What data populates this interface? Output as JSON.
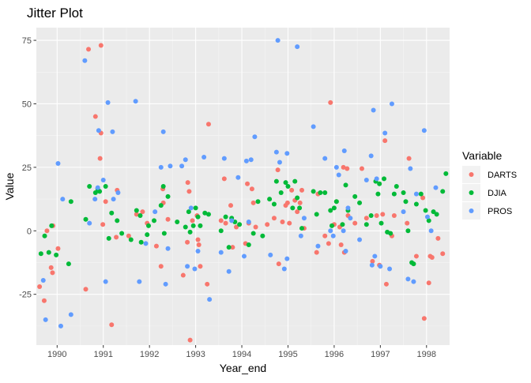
{
  "chart_data": {
    "type": "scatter",
    "title": "Jitter Plot",
    "xlabel": "Year_end",
    "ylabel": "Value",
    "xlim": [
      1989.55,
      1998.5
    ],
    "ylim": [
      -45,
      80
    ],
    "x_ticks": [
      1990,
      1991,
      1992,
      1993,
      1994,
      1995,
      1996,
      1997,
      1998
    ],
    "y_ticks": [
      -25,
      0,
      25,
      50,
      75
    ],
    "grid": true,
    "legend": {
      "title": "Variable",
      "position": "right"
    },
    "series": [
      {
        "name": "DARTS",
        "color": "#F8766D",
        "points": [
          [
            1989.62,
            -22
          ],
          [
            1989.72,
            -27.5
          ],
          [
            1989.78,
            0
          ],
          [
            1989.87,
            -14.5
          ],
          [
            1989.9,
            -16.5
          ],
          [
            1989.91,
            2
          ],
          [
            1990.02,
            -7
          ],
          [
            1990.62,
            -23
          ],
          [
            1990.68,
            71.5
          ],
          [
            1990.83,
            45
          ],
          [
            1990.93,
            28.5
          ],
          [
            1990.95,
            73
          ],
          [
            1990.95,
            38.5
          ],
          [
            1990.99,
            2.5
          ],
          [
            1991.05,
            11.5
          ],
          [
            1991.18,
            -37
          ],
          [
            1991.28,
            -2.5
          ],
          [
            1991.3,
            16
          ],
          [
            1991.55,
            -2
          ],
          [
            1991.72,
            6.5
          ],
          [
            1991.85,
            7.5
          ],
          [
            1991.95,
            3
          ],
          [
            1992.15,
            -6
          ],
          [
            1992.25,
            -14
          ],
          [
            1992.29,
            16.5
          ],
          [
            1992.3,
            11
          ],
          [
            1992.4,
            4.5
          ],
          [
            1992.73,
            -17.5
          ],
          [
            1992.82,
            -4.5
          ],
          [
            1992.83,
            19
          ],
          [
            1992.86,
            15.5
          ],
          [
            1992.88,
            -43
          ],
          [
            1992.93,
            4
          ],
          [
            1993.03,
            6
          ],
          [
            1993.05,
            -3.5
          ],
          [
            1993.07,
            -5.5
          ],
          [
            1993.1,
            -14
          ],
          [
            1993.25,
            -21
          ],
          [
            1993.28,
            42
          ],
          [
            1993.55,
            4
          ],
          [
            1993.62,
            20.5
          ],
          [
            1993.65,
            3
          ],
          [
            1993.76,
            10
          ],
          [
            1993.8,
            -6.5
          ],
          [
            1993.88,
            1.5
          ],
          [
            1994.08,
            -5
          ],
          [
            1994.12,
            18.5
          ],
          [
            1994.15,
            3
          ],
          [
            1994.22,
            16.5
          ],
          [
            1994.25,
            11
          ],
          [
            1994.3,
            1.5
          ],
          [
            1994.55,
            2.5
          ],
          [
            1994.7,
            5
          ],
          [
            1994.78,
            24
          ],
          [
            1994.8,
            -13
          ],
          [
            1994.88,
            3.5
          ],
          [
            1994.95,
            10
          ],
          [
            1994.99,
            11
          ],
          [
            1995.03,
            3
          ],
          [
            1995.08,
            16
          ],
          [
            1995.15,
            12
          ],
          [
            1995.2,
            7.5
          ],
          [
            1995.26,
            11
          ],
          [
            1995.3,
            16
          ],
          [
            1995.35,
            1
          ],
          [
            1995.62,
            -8.5
          ],
          [
            1995.65,
            14.5
          ],
          [
            1995.8,
            -2
          ],
          [
            1995.88,
            -5
          ],
          [
            1995.92,
            50.5
          ],
          [
            1996.0,
            2.5
          ],
          [
            1996.05,
            11.5
          ],
          [
            1996.12,
            1.5
          ],
          [
            1996.15,
            -5.5
          ],
          [
            1996.2,
            25
          ],
          [
            1996.22,
            -8.5
          ],
          [
            1996.28,
            24.5
          ],
          [
            1996.3,
            6
          ],
          [
            1996.45,
            3
          ],
          [
            1996.6,
            24.5
          ],
          [
            1996.7,
            5
          ],
          [
            1996.83,
            -12
          ],
          [
            1996.92,
            6
          ],
          [
            1996.98,
            -13.5
          ],
          [
            1997.05,
            6.5
          ],
          [
            1997.1,
            35.5
          ],
          [
            1997.13,
            -21
          ],
          [
            1997.25,
            -2
          ],
          [
            1997.3,
            6
          ],
          [
            1997.58,
            3
          ],
          [
            1997.62,
            28.5
          ],
          [
            1997.78,
            -10
          ],
          [
            1997.92,
            13
          ],
          [
            1997.95,
            -34.5
          ],
          [
            1998.05,
            -20.5
          ],
          [
            1998.08,
            -10
          ],
          [
            1998.12,
            -10.5
          ],
          [
            1998.25,
            -3
          ],
          [
            1998.35,
            -9
          ]
        ]
      },
      {
        "name": "DJIA",
        "color": "#00BA38",
        "points": [
          [
            1989.65,
            -9
          ],
          [
            1989.73,
            -2
          ],
          [
            1989.82,
            -8.5
          ],
          [
            1989.88,
            2
          ],
          [
            1989.98,
            -9.5
          ],
          [
            1990.25,
            -13
          ],
          [
            1990.3,
            11.5
          ],
          [
            1990.62,
            4.5
          ],
          [
            1990.7,
            17.5
          ],
          [
            1990.83,
            15
          ],
          [
            1990.88,
            16.5
          ],
          [
            1990.92,
            15.5
          ],
          [
            1991.05,
            17.5
          ],
          [
            1991.12,
            -3
          ],
          [
            1991.18,
            7
          ],
          [
            1991.3,
            4
          ],
          [
            1991.4,
            -1
          ],
          [
            1991.6,
            -3.5
          ],
          [
            1991.72,
            8
          ],
          [
            1991.8,
            6
          ],
          [
            1991.82,
            -4.5
          ],
          [
            1991.95,
            -1.5
          ],
          [
            1991.98,
            2
          ],
          [
            1992.1,
            4
          ],
          [
            1992.25,
            10
          ],
          [
            1992.3,
            17.5
          ],
          [
            1992.32,
            -1
          ],
          [
            1992.4,
            13.5
          ],
          [
            1992.6,
            3.5
          ],
          [
            1992.78,
            1.5
          ],
          [
            1992.85,
            7.5
          ],
          [
            1992.88,
            -0.5
          ],
          [
            1992.95,
            2
          ],
          [
            1993.0,
            9
          ],
          [
            1993.05,
            5.5
          ],
          [
            1993.1,
            2
          ],
          [
            1993.2,
            7
          ],
          [
            1993.28,
            6.5
          ],
          [
            1993.55,
            0
          ],
          [
            1993.65,
            5.5
          ],
          [
            1993.72,
            -6.5
          ],
          [
            1993.78,
            5
          ],
          [
            1993.85,
            3.5
          ],
          [
            1993.95,
            2.5
          ],
          [
            1994.15,
            -5.5
          ],
          [
            1994.25,
            -1
          ],
          [
            1994.35,
            11.5
          ],
          [
            1994.45,
            -2
          ],
          [
            1994.6,
            12.5
          ],
          [
            1994.7,
            10.5
          ],
          [
            1994.75,
            19.5
          ],
          [
            1994.85,
            15
          ],
          [
            1994.95,
            19
          ],
          [
            1995.0,
            17.5
          ],
          [
            1995.1,
            9
          ],
          [
            1995.15,
            19.5
          ],
          [
            1995.2,
            13
          ],
          [
            1995.25,
            9
          ],
          [
            1995.3,
            1
          ],
          [
            1995.55,
            15.5
          ],
          [
            1995.62,
            6.5
          ],
          [
            1995.7,
            15
          ],
          [
            1995.8,
            15
          ],
          [
            1995.92,
            8
          ],
          [
            1995.95,
            2
          ],
          [
            1996.0,
            9
          ],
          [
            1996.05,
            11.5
          ],
          [
            1996.18,
            2.5
          ],
          [
            1996.25,
            18
          ],
          [
            1996.3,
            8
          ],
          [
            1996.45,
            13.5
          ],
          [
            1996.55,
            11
          ],
          [
            1996.7,
            2.5
          ],
          [
            1996.8,
            6
          ],
          [
            1996.9,
            19.5
          ],
          [
            1996.95,
            14.5
          ],
          [
            1996.98,
            18.5
          ],
          [
            1997.02,
            3
          ],
          [
            1997.08,
            20.5
          ],
          [
            1997.15,
            -0.5
          ],
          [
            1997.22,
            -1
          ],
          [
            1997.3,
            14.5
          ],
          [
            1997.35,
            17.5
          ],
          [
            1997.5,
            15
          ],
          [
            1997.55,
            11.5
          ],
          [
            1997.6,
            0
          ],
          [
            1997.68,
            -12.5
          ],
          [
            1997.72,
            -13
          ],
          [
            1997.78,
            10.5
          ],
          [
            1997.88,
            14.5
          ],
          [
            1997.98,
            8
          ],
          [
            1998.05,
            4
          ],
          [
            1998.15,
            7.5
          ],
          [
            1998.22,
            6.5
          ],
          [
            1998.35,
            15.5
          ],
          [
            1998.42,
            22.5
          ]
        ]
      },
      {
        "name": "PROS",
        "color": "#619CFF",
        "points": [
          [
            1989.7,
            -19.5
          ],
          [
            1989.75,
            -35
          ],
          [
            1990.02,
            26.5
          ],
          [
            1990.08,
            -37.5
          ],
          [
            1990.12,
            12.5
          ],
          [
            1990.3,
            -33
          ],
          [
            1990.6,
            67
          ],
          [
            1990.7,
            3
          ],
          [
            1990.82,
            12.5
          ],
          [
            1990.88,
            17
          ],
          [
            1990.9,
            39.5
          ],
          [
            1991.0,
            20
          ],
          [
            1991.05,
            -20
          ],
          [
            1991.1,
            50.5
          ],
          [
            1991.2,
            39
          ],
          [
            1991.22,
            12.5
          ],
          [
            1991.32,
            15
          ],
          [
            1991.7,
            51
          ],
          [
            1991.78,
            -20
          ],
          [
            1991.92,
            -5
          ],
          [
            1992.12,
            7.5
          ],
          [
            1992.25,
            25
          ],
          [
            1992.3,
            39
          ],
          [
            1992.35,
            -21
          ],
          [
            1992.4,
            -7
          ],
          [
            1992.45,
            25.5
          ],
          [
            1992.7,
            25.5
          ],
          [
            1992.78,
            28
          ],
          [
            1992.82,
            -14
          ],
          [
            1992.9,
            9
          ],
          [
            1992.98,
            -15
          ],
          [
            1993.05,
            -8
          ],
          [
            1993.18,
            29
          ],
          [
            1993.3,
            -27
          ],
          [
            1993.55,
            -8.5
          ],
          [
            1993.62,
            28.5
          ],
          [
            1993.72,
            -16
          ],
          [
            1993.78,
            4
          ],
          [
            1993.92,
            21
          ],
          [
            1994.05,
            -10
          ],
          [
            1994.1,
            27.5
          ],
          [
            1994.15,
            3.5
          ],
          [
            1994.2,
            28
          ],
          [
            1994.28,
            37
          ],
          [
            1994.62,
            -9.5
          ],
          [
            1994.75,
            31
          ],
          [
            1994.78,
            75
          ],
          [
            1994.82,
            27
          ],
          [
            1994.92,
            -15
          ],
          [
            1994.98,
            -11
          ],
          [
            1994.98,
            30.5
          ],
          [
            1995.2,
            72.5
          ],
          [
            1995.28,
            -2
          ],
          [
            1995.35,
            5
          ],
          [
            1995.55,
            41
          ],
          [
            1995.65,
            -6
          ],
          [
            1995.8,
            28.5
          ],
          [
            1995.92,
            0
          ],
          [
            1995.98,
            -2
          ],
          [
            1996.05,
            25
          ],
          [
            1996.1,
            22
          ],
          [
            1996.2,
            0
          ],
          [
            1996.22,
            31.5
          ],
          [
            1996.25,
            -8
          ],
          [
            1996.3,
            9
          ],
          [
            1996.35,
            5
          ],
          [
            1996.55,
            -3.5
          ],
          [
            1996.7,
            20
          ],
          [
            1996.8,
            29.5
          ],
          [
            1996.82,
            -13.5
          ],
          [
            1996.85,
            47.5
          ],
          [
            1996.88,
            -10
          ],
          [
            1996.92,
            20.5
          ],
          [
            1997.0,
            -14
          ],
          [
            1997.1,
            38.5
          ],
          [
            1997.2,
            -15
          ],
          [
            1997.25,
            50
          ],
          [
            1997.5,
            7.5
          ],
          [
            1997.6,
            -19
          ],
          [
            1997.65,
            24.5
          ],
          [
            1997.72,
            -20
          ],
          [
            1997.78,
            14.5
          ],
          [
            1997.95,
            39.5
          ],
          [
            1998.02,
            5.5
          ],
          [
            1998.1,
            0
          ],
          [
            1998.2,
            17
          ]
        ]
      }
    ]
  }
}
